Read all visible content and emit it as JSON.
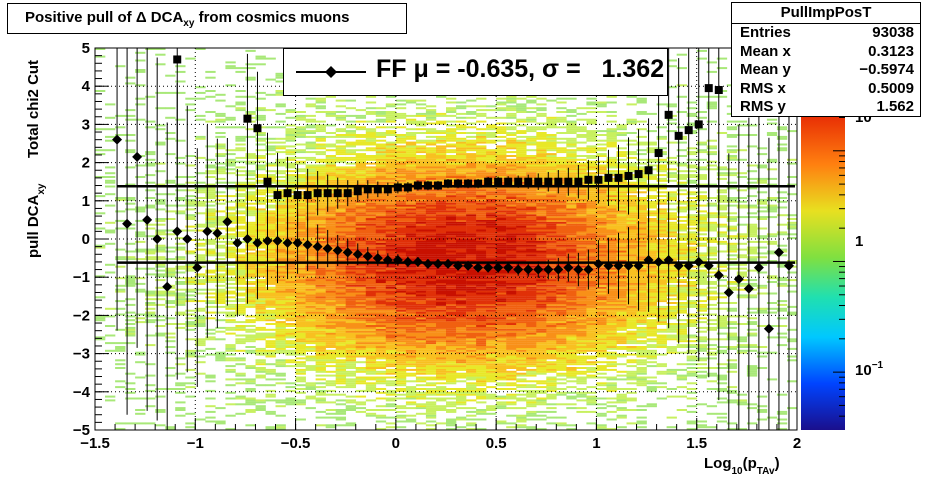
{
  "title": {
    "main": "Positive pull of Δ DCA",
    "sub": "xy",
    "suffix": " from cosmics muons"
  },
  "stats": {
    "name": "PullImpPosT",
    "rows": [
      {
        "label": "Entries",
        "value": "93038"
      },
      {
        "label": "Mean x",
        "value": "0.3123"
      },
      {
        "label": "Mean y",
        "value": "−0.5974"
      },
      {
        "label": "RMS x",
        "value": "0.5009"
      },
      {
        "label": "RMS y",
        "value": "1.562"
      }
    ]
  },
  "legend": {
    "label": "FF μ = -0.635, σ =   1.362"
  },
  "axes": {
    "ylabel_top": "Total chi2 Cut",
    "ylabel_main": "pull DCA",
    "ylabel_sub": "xy",
    "xlabel_main": "Log",
    "xlabel_sub1": "10",
    "xlabel_mid": "(p",
    "xlabel_sub2": "TAv",
    "xlabel_end": ")"
  },
  "colors": {
    "axis": "#000000",
    "markers": "#000000"
  },
  "chart_data": {
    "type": "heatmap",
    "xlim": [
      -1.5,
      2.0
    ],
    "ylim": [
      -5,
      5
    ],
    "xticks": [
      -1.5,
      -1,
      -0.5,
      0,
      0.5,
      1,
      1.5,
      2
    ],
    "xtick_labels": [
      "−1.5",
      "−1",
      "−0.5",
      "0",
      "0.5",
      "1",
      "1.5",
      "2"
    ],
    "yticks": [
      -5,
      -4,
      -3,
      -2,
      -1,
      0,
      1,
      2,
      3,
      4,
      5
    ],
    "ytick_labels": [
      "−5",
      "−4",
      "−3",
      "−2",
      "−1",
      "0",
      "1",
      "2",
      "3",
      "4",
      "5"
    ],
    "colorbar": {
      "scale": "log",
      "tick_labels": [
        "1",
        "10"
      ],
      "exponent_label": "−1",
      "range": [
        0.03,
        30
      ]
    },
    "grid": true,
    "heatmap_density": {
      "x_center": 0.31,
      "x_rms": 0.5,
      "y_center": -0.6,
      "y_rms": 1.56
    },
    "fit_lines": [
      {
        "name": "sigma",
        "y": 1.38
      },
      {
        "name": "mu",
        "y": -0.62
      }
    ],
    "series": [
      {
        "marker": "diamond",
        "points": [
          [
            -1.39,
            2.6
          ],
          [
            -1.34,
            0.4
          ],
          [
            -1.29,
            2.15
          ],
          [
            -1.24,
            0.5
          ],
          [
            -1.19,
            0.0
          ],
          [
            -1.14,
            -1.25
          ],
          [
            -1.09,
            0.2
          ],
          [
            -1.04,
            0.0
          ],
          [
            -0.99,
            -0.75
          ],
          [
            -0.94,
            0.2
          ],
          [
            -0.89,
            0.15
          ],
          [
            -0.84,
            0.45
          ],
          [
            -0.79,
            -0.1
          ],
          [
            -0.74,
            0.0
          ],
          [
            -0.69,
            -0.1
          ],
          [
            -0.64,
            -0.05
          ],
          [
            -0.59,
            -0.05
          ],
          [
            -0.54,
            -0.1
          ],
          [
            -0.49,
            -0.1
          ],
          [
            -0.44,
            -0.15
          ],
          [
            -0.39,
            -0.2
          ],
          [
            -0.34,
            -0.25
          ],
          [
            -0.29,
            -0.3
          ],
          [
            -0.24,
            -0.35
          ],
          [
            -0.19,
            -0.4
          ],
          [
            -0.14,
            -0.45
          ],
          [
            -0.09,
            -0.5
          ],
          [
            -0.04,
            -0.55
          ],
          [
            0.01,
            -0.55
          ],
          [
            0.06,
            -0.6
          ],
          [
            0.11,
            -0.6
          ],
          [
            0.16,
            -0.65
          ],
          [
            0.21,
            -0.65
          ],
          [
            0.26,
            -0.65
          ],
          [
            0.31,
            -0.7
          ],
          [
            0.36,
            -0.7
          ],
          [
            0.41,
            -0.75
          ],
          [
            0.46,
            -0.75
          ],
          [
            0.51,
            -0.75
          ],
          [
            0.56,
            -0.75
          ],
          [
            0.61,
            -0.8
          ],
          [
            0.66,
            -0.8
          ],
          [
            0.71,
            -0.8
          ],
          [
            0.76,
            -0.8
          ],
          [
            0.81,
            -0.8
          ],
          [
            0.86,
            -0.75
          ],
          [
            0.91,
            -0.8
          ],
          [
            0.96,
            -0.8
          ],
          [
            1.01,
            -0.65
          ],
          [
            1.06,
            -0.7
          ],
          [
            1.11,
            -0.7
          ],
          [
            1.16,
            -0.7
          ],
          [
            1.21,
            -0.7
          ],
          [
            1.26,
            -0.55
          ],
          [
            1.31,
            -0.6
          ],
          [
            1.36,
            -0.55
          ],
          [
            1.41,
            -0.7
          ],
          [
            1.46,
            -0.7
          ],
          [
            1.51,
            -0.6
          ],
          [
            1.56,
            -0.7
          ],
          [
            1.61,
            -0.95
          ],
          [
            1.66,
            -1.4
          ],
          [
            1.71,
            -1.05
          ],
          [
            1.76,
            -1.3
          ],
          [
            1.81,
            -0.75
          ],
          [
            1.86,
            -2.35
          ],
          [
            1.91,
            -0.35
          ],
          [
            1.96,
            -0.7
          ]
        ]
      },
      {
        "marker": "square",
        "points": [
          [
            -1.09,
            4.7
          ],
          [
            -0.74,
            3.15
          ],
          [
            -0.69,
            2.9
          ],
          [
            -0.64,
            1.5
          ],
          [
            -0.59,
            1.15
          ],
          [
            -0.54,
            1.2
          ],
          [
            -0.49,
            1.15
          ],
          [
            -0.44,
            1.15
          ],
          [
            -0.39,
            1.2
          ],
          [
            -0.34,
            1.2
          ],
          [
            -0.29,
            1.2
          ],
          [
            -0.24,
            1.2
          ],
          [
            -0.19,
            1.25
          ],
          [
            -0.14,
            1.3
          ],
          [
            -0.09,
            1.3
          ],
          [
            -0.04,
            1.3
          ],
          [
            0.01,
            1.35
          ],
          [
            0.06,
            1.35
          ],
          [
            0.11,
            1.4
          ],
          [
            0.16,
            1.4
          ],
          [
            0.21,
            1.4
          ],
          [
            0.26,
            1.45
          ],
          [
            0.31,
            1.45
          ],
          [
            0.36,
            1.45
          ],
          [
            0.41,
            1.45
          ],
          [
            0.46,
            1.5
          ],
          [
            0.51,
            1.5
          ],
          [
            0.56,
            1.5
          ],
          [
            0.61,
            1.5
          ],
          [
            0.66,
            1.5
          ],
          [
            0.71,
            1.5
          ],
          [
            0.76,
            1.5
          ],
          [
            0.81,
            1.5
          ],
          [
            0.86,
            1.5
          ],
          [
            0.91,
            1.5
          ],
          [
            0.96,
            1.55
          ],
          [
            1.01,
            1.55
          ],
          [
            1.06,
            1.6
          ],
          [
            1.11,
            1.6
          ],
          [
            1.16,
            1.65
          ],
          [
            1.21,
            1.7
          ],
          [
            1.26,
            1.8
          ],
          [
            1.31,
            2.25
          ],
          [
            1.36,
            3.25
          ],
          [
            1.41,
            2.7
          ],
          [
            1.46,
            2.85
          ],
          [
            1.51,
            3.0
          ],
          [
            1.56,
            3.95
          ],
          [
            1.61,
            3.9
          ],
          [
            1.96,
            4.5
          ]
        ]
      }
    ]
  }
}
